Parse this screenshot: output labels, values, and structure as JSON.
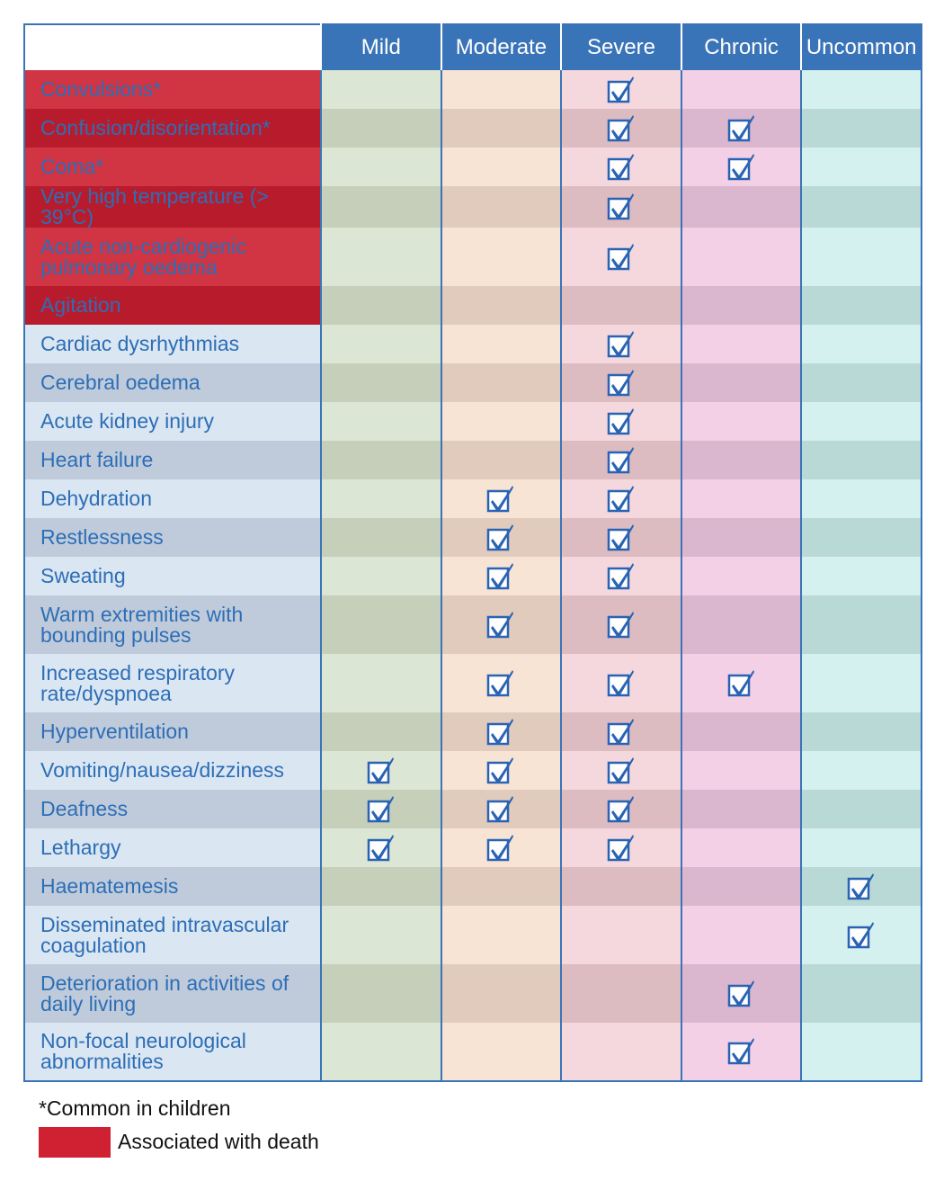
{
  "columns": [
    "Mild",
    "Moderate",
    "Severe",
    "Chronic",
    "Uncommon"
  ],
  "column_keys": [
    "mild",
    "moderate",
    "severe",
    "chronic",
    "uncommon"
  ],
  "rows": [
    {
      "label": "Convulsions*",
      "fatal": true,
      "checks": [
        0,
        0,
        1,
        0,
        0
      ]
    },
    {
      "label": "Confusion/disorientation*",
      "fatal": true,
      "checks": [
        0,
        0,
        1,
        1,
        0
      ]
    },
    {
      "label": "Coma*",
      "fatal": true,
      "checks": [
        0,
        0,
        1,
        1,
        0
      ]
    },
    {
      "label": "Very high temperature (> 39°C)",
      "fatal": true,
      "checks": [
        0,
        0,
        1,
        0,
        0
      ]
    },
    {
      "label": "Acute non-cardiogenic pulmonary oedema",
      "fatal": true,
      "checks": [
        0,
        0,
        1,
        0,
        0
      ]
    },
    {
      "label": "Agitation",
      "fatal": true,
      "checks": [
        0,
        0,
        0,
        0,
        0
      ]
    },
    {
      "label": "Cardiac dysrhythmias",
      "fatal": false,
      "checks": [
        0,
        0,
        1,
        0,
        0
      ]
    },
    {
      "label": "Cerebral oedema",
      "fatal": false,
      "checks": [
        0,
        0,
        1,
        0,
        0
      ]
    },
    {
      "label": "Acute kidney injury",
      "fatal": false,
      "checks": [
        0,
        0,
        1,
        0,
        0
      ]
    },
    {
      "label": "Heart failure",
      "fatal": false,
      "checks": [
        0,
        0,
        1,
        0,
        0
      ]
    },
    {
      "label": "Dehydration",
      "fatal": false,
      "checks": [
        0,
        1,
        1,
        0,
        0
      ]
    },
    {
      "label": "Restlessness",
      "fatal": false,
      "checks": [
        0,
        1,
        1,
        0,
        0
      ]
    },
    {
      "label": "Sweating",
      "fatal": false,
      "checks": [
        0,
        1,
        1,
        0,
        0
      ]
    },
    {
      "label": "Warm extremities with bounding pulses",
      "fatal": false,
      "checks": [
        0,
        1,
        1,
        0,
        0
      ]
    },
    {
      "label": "Increased respiratory rate/dyspnoea",
      "fatal": false,
      "checks": [
        0,
        1,
        1,
        1,
        0
      ]
    },
    {
      "label": "Hyperventilation",
      "fatal": false,
      "checks": [
        0,
        1,
        1,
        0,
        0
      ]
    },
    {
      "label": "Vomiting/nausea/dizziness",
      "fatal": false,
      "checks": [
        1,
        1,
        1,
        0,
        0
      ]
    },
    {
      "label": "Deafness",
      "fatal": false,
      "checks": [
        1,
        1,
        1,
        0,
        0
      ]
    },
    {
      "label": "Lethargy",
      "fatal": false,
      "checks": [
        1,
        1,
        1,
        0,
        0
      ]
    },
    {
      "label": "Haematemesis",
      "fatal": false,
      "checks": [
        0,
        0,
        0,
        0,
        1
      ]
    },
    {
      "label": "Disseminated intravascular coagulation",
      "fatal": false,
      "checks": [
        0,
        0,
        0,
        0,
        1
      ]
    },
    {
      "label": "Deterioration in activities of daily living",
      "fatal": false,
      "checks": [
        0,
        0,
        0,
        1,
        0
      ]
    },
    {
      "label": "Non-focal neurological abnormalities",
      "fatal": false,
      "checks": [
        0,
        0,
        0,
        1,
        0
      ]
    }
  ],
  "footnote": "*Common in children",
  "legend": {
    "label": "Associated with death",
    "color": "#cf2131"
  },
  "colors": {
    "header": "#3a74b8",
    "checkmark": "#2a63b4"
  },
  "icons": {
    "check": "checked-box-icon"
  }
}
